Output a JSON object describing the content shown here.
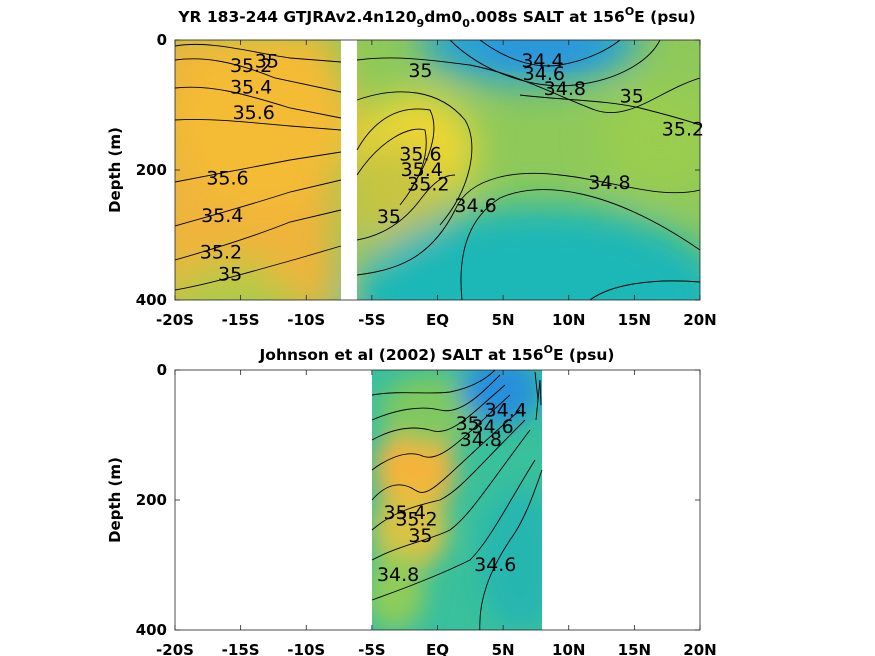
{
  "chart_data": [
    {
      "type": "contour",
      "title_main": "YR 183-244 GTJRAv2.4n120",
      "title_sub1": "9",
      "title_mid": "dm0",
      "title_sub2": "0",
      "title_tail": ".008s SALT at 156",
      "title_sup": "O",
      "title_end": "E (psu)",
      "ylabel": "Depth (m)",
      "xlabel": "",
      "x_ticks": [
        "-20S",
        "-15S",
        "-10S",
        "-5S",
        "EQ",
        "5N",
        "10N",
        "15N",
        "20N"
      ],
      "y_ticks": [
        "0",
        "200",
        "400"
      ],
      "xlim": [
        -20,
        20
      ],
      "ylim": [
        0,
        400
      ],
      "data_gap": [
        -6.5,
        -6.0
      ],
      "fields": [
        {
          "name": "high_salinity_core_south",
          "x": -14,
          "y": 120,
          "value": 35.7
        },
        {
          "name": "high_salinity_core_equator",
          "x": -4.5,
          "y": 150,
          "value": 35.8
        },
        {
          "name": "low_salinity_surface_north",
          "x": 7,
          "y": 15,
          "value": 34.3
        },
        {
          "name": "low_salinity_deep_north",
          "x": 10,
          "y": 300,
          "value": 34.5
        },
        {
          "name": "high_salinity_north_sub",
          "x": 18,
          "y": 130,
          "value": 35.3
        }
      ],
      "contour_labels": [
        {
          "text": "35",
          "x": -13.0,
          "y": 33
        },
        {
          "text": "35.2",
          "x": -14.2,
          "y": 40
        },
        {
          "text": "35.4",
          "x": -14.2,
          "y": 73
        },
        {
          "text": "35.6",
          "x": -14.0,
          "y": 112
        },
        {
          "text": "35.6",
          "x": -16.0,
          "y": 213
        },
        {
          "text": "35.4",
          "x": -16.4,
          "y": 271
        },
        {
          "text": "35.2",
          "x": -16.5,
          "y": 327
        },
        {
          "text": "35",
          "x": -15.8,
          "y": 361
        },
        {
          "text": "35.6",
          "x": -1.3,
          "y": 176
        },
        {
          "text": "35.4",
          "x": -1.2,
          "y": 200
        },
        {
          "text": "35.2",
          "x": -0.7,
          "y": 222
        },
        {
          "text": "35",
          "x": -3.7,
          "y": 272
        },
        {
          "text": "34.6",
          "x": 2.9,
          "y": 255
        },
        {
          "text": "35",
          "x": -1.3,
          "y": 48
        },
        {
          "text": "34.4",
          "x": 8.0,
          "y": 32
        },
        {
          "text": "34.6",
          "x": 8.1,
          "y": 52
        },
        {
          "text": "34.8",
          "x": 9.7,
          "y": 75
        },
        {
          "text": "35",
          "x": 14.8,
          "y": 87
        },
        {
          "text": "35.2",
          "x": 18.7,
          "y": 138
        },
        {
          "text": "34.8",
          "x": 13.1,
          "y": 220
        }
      ]
    },
    {
      "type": "contour",
      "title_main": "Johnson et al (2002) SALT at 156",
      "title_sup": "O",
      "title_end": "E (psu)",
      "ylabel": "Depth (m)",
      "xlabel": "",
      "x_ticks": [
        "-20S",
        "-15S",
        "-10S",
        "-5S",
        "EQ",
        "5N",
        "10N",
        "15N",
        "20N"
      ],
      "y_ticks": [
        "0",
        "200",
        "400"
      ],
      "xlim": [
        -20,
        20
      ],
      "ylim": [
        0,
        400
      ],
      "data_extent": [
        -5,
        8
      ],
      "fields": [
        {
          "name": "high_salinity_core",
          "x": -4.5,
          "y": 180,
          "value": 35.6
        },
        {
          "name": "low_salinity_surface",
          "x": 6,
          "y": 20,
          "value": 34.2
        }
      ],
      "contour_labels": [
        {
          "text": "34.4",
          "x": 5.2,
          "y": 62
        },
        {
          "text": "34.6",
          "x": 4.2,
          "y": 88
        },
        {
          "text": "34.8",
          "x": 3.3,
          "y": 108
        },
        {
          "text": "35",
          "x": 2.3,
          "y": 83
        },
        {
          "text": "35.4",
          "x": -2.5,
          "y": 220
        },
        {
          "text": "35.2",
          "x": -1.6,
          "y": 230
        },
        {
          "text": "35",
          "x": -1.3,
          "y": 255
        },
        {
          "text": "34.8",
          "x": -3.0,
          "y": 315
        },
        {
          "text": "34.6",
          "x": 4.4,
          "y": 300
        }
      ]
    }
  ]
}
